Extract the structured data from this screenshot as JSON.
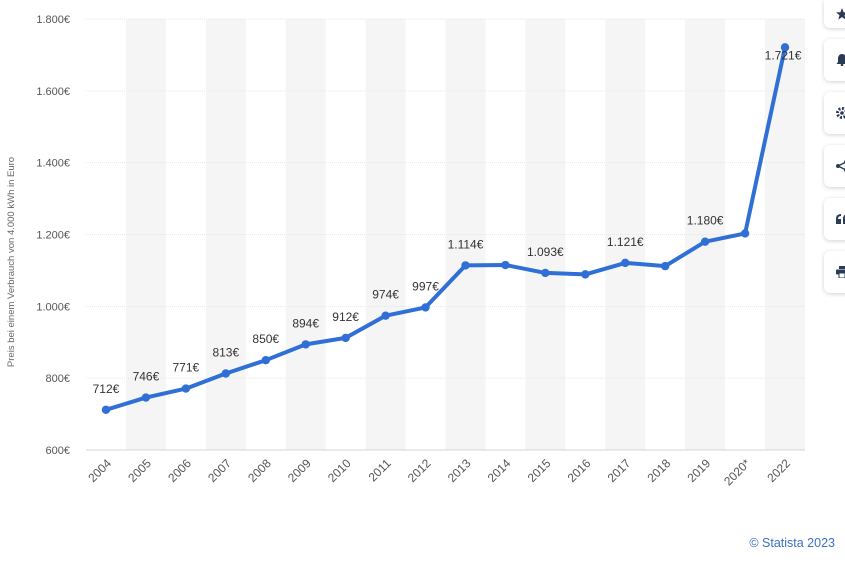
{
  "chart_data": {
    "type": "line",
    "title": "",
    "ylabel": "Preis bei einem Verbrauch von 4.000 kWh in Euro",
    "xlabel": "",
    "categories": [
      "2004",
      "2005",
      "2006",
      "2007",
      "2008",
      "2009",
      "2010",
      "2011",
      "2012",
      "2013",
      "2014",
      "2015",
      "2016",
      "2017",
      "2018",
      "2019",
      "2020*",
      "2022"
    ],
    "series": [
      {
        "values": [
          712,
          746,
          771,
          813,
          850,
          894,
          912,
          974,
          997,
          1114,
          1115,
          1093,
          1089,
          1121,
          1112,
          1180,
          1203,
          1721
        ]
      }
    ],
    "data_labels": [
      "712€",
      "746€",
      "771€",
      "813€",
      "850€",
      "894€",
      "912€",
      "974€",
      "997€",
      "1.114€",
      "",
      "1.093€",
      "",
      "1.121€",
      "",
      "1.180€",
      "",
      "1.721€"
    ],
    "yticks": [
      600,
      800,
      1000,
      1200,
      1400,
      1600,
      1800
    ],
    "ytick_labels": [
      "600€",
      "800€",
      "1.000€",
      "1.200€",
      "1.400€",
      "1.600€",
      "1.800€"
    ],
    "ylim": [
      600,
      1800
    ],
    "grid": true,
    "line_color": "#2f6fd6"
  },
  "footer": {
    "copyright": "© Statista 2023"
  },
  "toolbar": {
    "icons": [
      "star-icon",
      "bell-icon",
      "gear-icon",
      "share-icon",
      "quote-icon",
      "print-icon"
    ]
  }
}
